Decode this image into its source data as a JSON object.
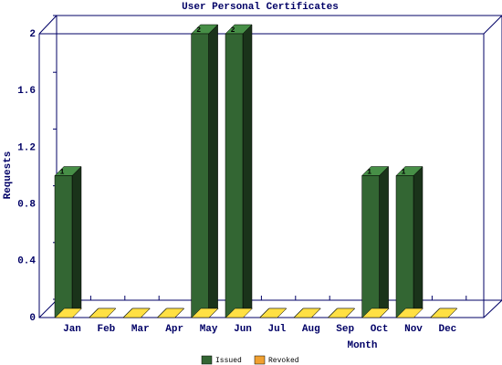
{
  "chart_data": {
    "type": "bar3d",
    "title": "User Personal Certificates",
    "x_label": "Month",
    "y_label": "Requests",
    "categories": [
      "Jan",
      "Feb",
      "Mar",
      "Apr",
      "May",
      "Jun",
      "Jul",
      "Aug",
      "Sep",
      "Oct",
      "Nov",
      "Dec"
    ],
    "series": [
      {
        "name": "Issued",
        "color": "#336633",
        "values": [
          1,
          0,
          0,
          0,
          2,
          2,
          0,
          0,
          0,
          1,
          1,
          0
        ]
      },
      {
        "name": "Revoked",
        "color": "#f0a030",
        "values": [
          0,
          0,
          0,
          0,
          0,
          0,
          0,
          0,
          0,
          0,
          0,
          0
        ]
      }
    ],
    "ylim": [
      0,
      2
    ],
    "yticks": [
      0,
      0.4,
      0.8,
      1.2,
      1.6,
      2
    ]
  }
}
